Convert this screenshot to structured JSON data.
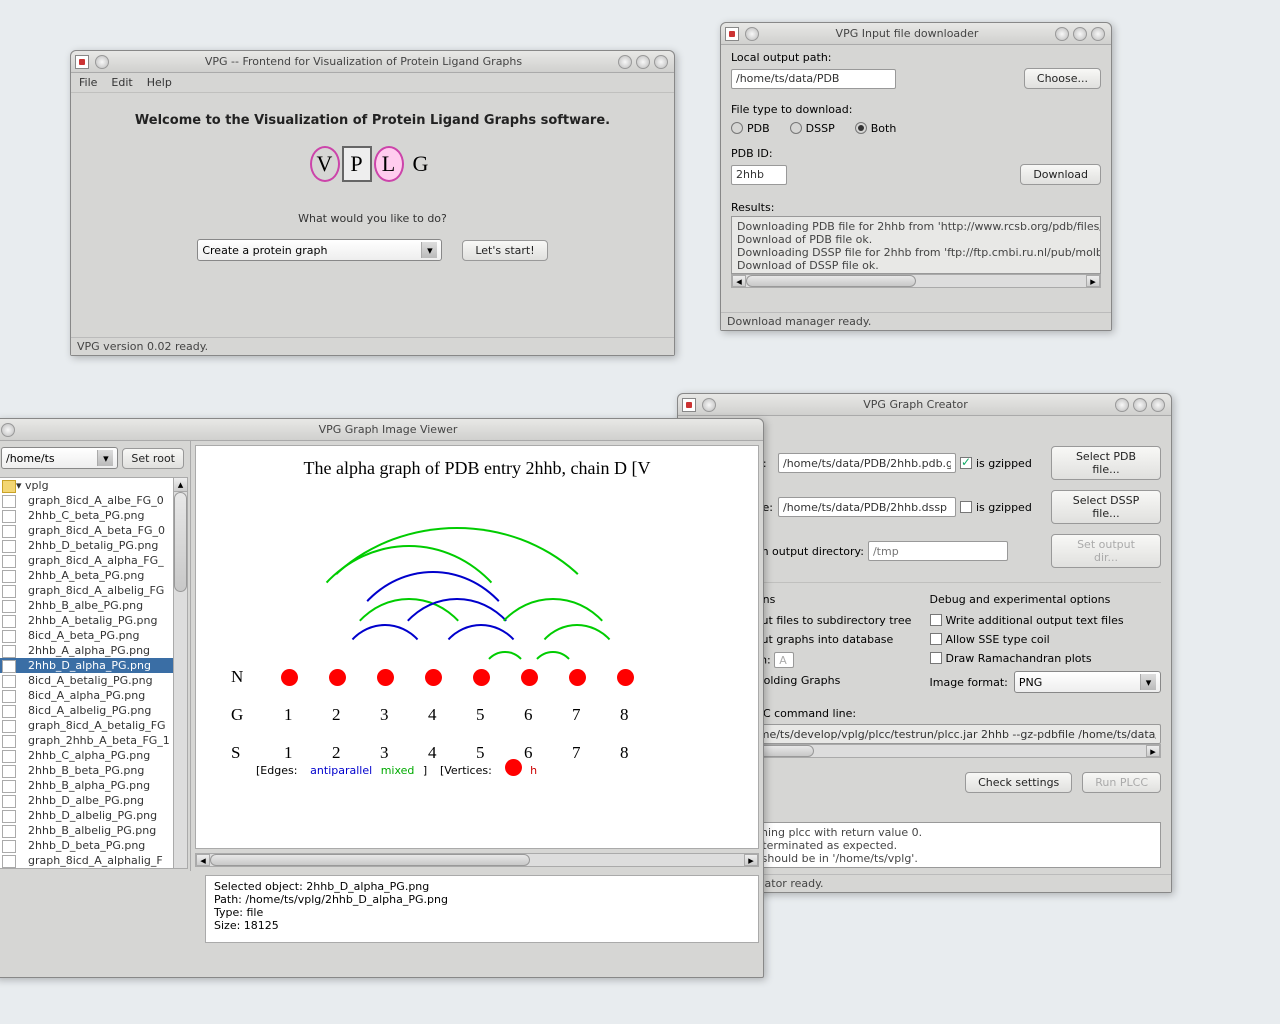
{
  "frontend": {
    "title": "VPG -- Frontend for Visualization of Protein Ligand Graphs",
    "menu": {
      "file": "File",
      "edit": "Edit",
      "help": "Help"
    },
    "welcome": "Welcome to the Visualization of Protein Ligand Graphs software.",
    "logo_letters": [
      "V",
      "P",
      "L",
      "G"
    ],
    "prompt": "What would you like to do?",
    "action_select": "Create a protein graph",
    "start_btn": "Let's start!",
    "status": "VPG version 0.02 ready."
  },
  "downloader": {
    "title": "VPG Input file downloader",
    "output_label": "Local output path:",
    "output_path": "/home/ts/data/PDB",
    "choose_btn": "Choose...",
    "filetype_label": "File type to download:",
    "radio_pdb": "PDB",
    "radio_dssp": "DSSP",
    "radio_both": "Both",
    "radio_selected": "Both",
    "pdbid_label": "PDB ID:",
    "pdbid_value": "2hhb",
    "download_btn": "Download",
    "results_label": "Results:",
    "results_text": "Downloading PDB file for 2hhb from 'http://www.rcsb.org/pdb/files/2\nDownload of PDB file ok.\nDownloading DSSP file for 2hhb from 'ftp://ftp.cmbi.ru.nl/pub/molbio\nDownload of DSSP file ok.",
    "status": "Download manager ready."
  },
  "viewer": {
    "title": "VPG Graph Image Viewer",
    "path_input": "/home/ts",
    "setroot_btn": "Set root",
    "tree_root": "vplg",
    "tree_items": [
      "graph_8icd_A_albe_FG_0",
      "2hhb_C_beta_PG.png",
      "graph_8icd_A_beta_FG_0",
      "2hhb_D_betalig_PG.png",
      "graph_8icd_A_alpha_FG_",
      "2hhb_A_beta_PG.png",
      "graph_8icd_A_albelig_FG",
      "2hhb_B_albe_PG.png",
      "2hhb_A_betalig_PG.png",
      "8icd_A_beta_PG.png",
      "2hhb_A_alpha_PG.png",
      "2hhb_D_alpha_PG.png",
      "8icd_A_betalig_PG.png",
      "8icd_A_alpha_PG.png",
      "8icd_A_albelig_PG.png",
      "graph_8icd_A_betalig_FG",
      "graph_2hhb_A_beta_FG_1",
      "2hhb_C_alpha_PG.png",
      "2hhb_B_beta_PG.png",
      "2hhb_B_alpha_PG.png",
      "2hhb_D_albe_PG.png",
      "2hhb_D_albelig_PG.png",
      "2hhb_B_albelig_PG.png",
      "2hhb_D_beta_PG.png",
      "graph_8icd_A_alphalig_F"
    ],
    "tree_selected_index": 11,
    "graph_title": "The alpha graph of PDB entry 2hhb, chain D [V",
    "row_labels": [
      "N",
      "G",
      "S"
    ],
    "node_count": 8,
    "numbers": [
      "1",
      "2",
      "3",
      "4",
      "5",
      "6",
      "7",
      "8"
    ],
    "legend_edges_label": "[Edges:",
    "legend_antiparallel": "antiparallel",
    "legend_mixed": "mixed",
    "legend_bracket": "]",
    "legend_vertices": "[Vertices:",
    "legend_vertex_label": "h",
    "arcs": [
      {
        "from": 0,
        "to": 5,
        "color": "#00cc00"
      },
      {
        "from": 0,
        "to": 7,
        "color": "#00cc00"
      },
      {
        "from": 1,
        "to": 4,
        "color": "#00cc00"
      },
      {
        "from": 1,
        "to": 3,
        "color": "#0000cc"
      },
      {
        "from": 1,
        "to": 5,
        "color": "#0000cc"
      },
      {
        "from": 2,
        "to": 5,
        "color": "#0000cc"
      },
      {
        "from": 3,
        "to": 5,
        "color": "#0000cc"
      },
      {
        "from": 4,
        "to": 5,
        "color": "#00cc00"
      },
      {
        "from": 4,
        "to": 7,
        "color": "#00cc00"
      },
      {
        "from": 5,
        "to": 6,
        "color": "#00cc00"
      },
      {
        "from": 5,
        "to": 7,
        "color": "#00cc00"
      }
    ],
    "info_selected": "Selected object: 2hhb_D_alpha_PG.png",
    "info_path": "Path: /home/ts/vplg/2hhb_D_alpha_PG.png",
    "info_type": "Type: file",
    "info_size": "Size: 18125"
  },
  "creator": {
    "title": "VPG Graph Creator",
    "pdb_label": "Input PDB file:",
    "pdb_value": "/home/ts/data/PDB/2hhb.pdb.gz",
    "pdb_gzipped": "is gzipped",
    "pdb_gzipped_checked": true,
    "select_pdb_btn": "Select PDB file...",
    "dssp_label": "Input DSSP file:",
    "dssp_value": "/home/ts/data/PDB/2hhb.dssp",
    "dssp_gzipped": "is gzipped",
    "dssp_gzipped_checked": false,
    "select_dssp_btn": "Select DSSP file...",
    "custom_out_label": "Use custom output directory:",
    "custom_out_placeholder": "/tmp",
    "set_outdir_btn": "Set output dir...",
    "general_header": "General options",
    "debug_header": "Debug and experimental options",
    "opt_subdir": "Write output files to subdirectory tree",
    "opt_db": "Write output graphs into database",
    "opt_force_chain": "Force chain:",
    "opt_force_chain_val": "A",
    "opt_folding": "Compute Folding Graphs",
    "opt_addl_text": "Write additional output text files",
    "opt_sse_coil": "Allow SSE type coil",
    "opt_ramachandran": "Draw Ramachandran plots",
    "img_format_label": "Image format:",
    "img_format_value": "PNG",
    "cmdline_label": "Resulting PLCC command line:",
    "cmdline_value": "java -jar /home/ts/develop/vplg/plcc/testrun/plcc.jar 2hhb --gz-pdbfile /home/ts/data/PDB/2hh",
    "check_btn": "Check settings",
    "run_btn": "Run PLCC",
    "results_label": "Results:",
    "results_text": "Finished running plcc with return value 0.\nOK: Process terminated as expected.\nOutput files should be in '/home/ts/vplg'.",
    "status": "VPG Graph creator ready."
  }
}
